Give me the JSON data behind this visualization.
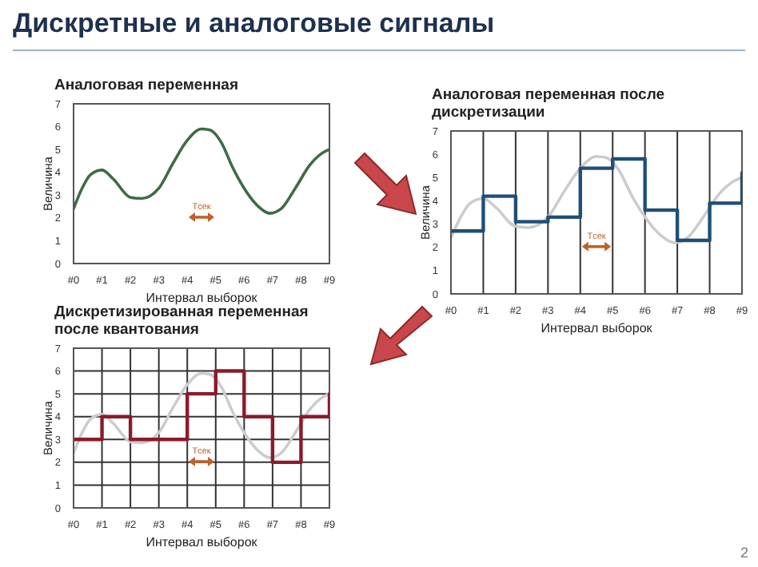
{
  "chart_data": [
    {
      "type": "line",
      "title": "Аналоговая переменная",
      "xlabel": "Интервал выборок",
      "ylabel": "Величина",
      "xlim": [
        0,
        9
      ],
      "ylim": [
        0,
        7
      ],
      "yticks": [
        0,
        1,
        2,
        3,
        4,
        5,
        6,
        7
      ],
      "xticks": [
        {
          "value": 0,
          "label": "#0"
        },
        {
          "value": 1,
          "label": "#1"
        },
        {
          "value": 2,
          "label": "#2"
        },
        {
          "value": 3,
          "label": "#3"
        },
        {
          "value": 4,
          "label": "#4"
        },
        {
          "value": 5,
          "label": "#5"
        },
        {
          "value": 6,
          "label": "#6"
        },
        {
          "value": 7,
          "label": "#7"
        },
        {
          "value": 8,
          "label": "#8"
        },
        {
          "value": 9,
          "label": "#9"
        }
      ],
      "grid": false,
      "series": [
        {
          "color": "#3d6b45",
          "x": [
            0,
            0.3,
            0.6,
            1,
            1.4,
            2,
            2.4,
            3,
            3.5,
            4,
            4.5,
            4.8,
            5.2,
            5.6,
            6,
            6.5,
            6.9,
            7.3,
            7.8,
            8.3,
            8.7,
            9
          ],
          "values": [
            2.4,
            3.3,
            3.9,
            4.1,
            3.7,
            2.9,
            2.85,
            3.3,
            4.4,
            5.4,
            5.9,
            5.85,
            5.3,
            4.2,
            3.3,
            2.5,
            2.2,
            2.4,
            3.3,
            4.3,
            4.8,
            5.0
          ]
        }
      ],
      "annotations": [
        "Дискретные и аналоговые сигналы",
        "Tсек"
      ]
    },
    {
      "type": "line",
      "title": "Аналоговая переменная после дискретизации",
      "xlabel": "Интервал выборок",
      "ylabel": "Величина",
      "xlim": [
        0,
        9
      ],
      "ylim": [
        0,
        7
      ],
      "yticks": [
        0,
        1,
        2,
        3,
        4,
        5,
        6,
        7
      ],
      "xticks": [
        {
          "value": 0,
          "label": "#0"
        },
        {
          "value": 1,
          "label": "#1"
        },
        {
          "value": 2,
          "label": "#2"
        },
        {
          "value": 3,
          "label": "#3"
        },
        {
          "value": 4,
          "label": "#4"
        },
        {
          "value": 5,
          "label": "#5"
        },
        {
          "value": 6,
          "label": "#6"
        },
        {
          "value": 7,
          "label": "#7"
        },
        {
          "value": 8,
          "label": "#8"
        },
        {
          "value": 9,
          "label": "#9"
        }
      ],
      "grid": "x",
      "series": [
        {
          "color": "#cccccc",
          "x": [
            0,
            0.3,
            0.6,
            1,
            1.4,
            2,
            2.4,
            3,
            3.5,
            4,
            4.5,
            4.8,
            5.2,
            5.6,
            6,
            6.5,
            6.9,
            7.3,
            7.8,
            8.3,
            8.7,
            9
          ],
          "values": [
            2.4,
            3.3,
            3.9,
            4.1,
            3.7,
            2.9,
            2.85,
            3.3,
            4.4,
            5.4,
            5.9,
            5.85,
            5.3,
            4.2,
            3.3,
            2.5,
            2.2,
            2.4,
            3.3,
            4.3,
            4.8,
            5.0
          ]
        },
        {
          "type": "step",
          "color": "#1f4e79",
          "x": [
            0,
            1,
            2,
            3,
            4,
            5,
            6,
            7,
            8,
            9
          ],
          "values": [
            2.7,
            4.2,
            3.1,
            3.3,
            5.4,
            5.8,
            3.6,
            2.3,
            3.9,
            5.2
          ]
        }
      ],
      "annotations": [
        "Tсек"
      ]
    },
    {
      "type": "line",
      "title": "Дискретизированная переменная после квантования",
      "xlabel": "Интервал выборок",
      "ylabel": "Величина",
      "xlim": [
        0,
        9
      ],
      "ylim": [
        0,
        7
      ],
      "yticks": [
        0,
        1,
        2,
        3,
        4,
        5,
        6,
        7
      ],
      "xticks": [
        {
          "value": 0,
          "label": "#0"
        },
        {
          "value": 1,
          "label": "#1"
        },
        {
          "value": 2,
          "label": "#2"
        },
        {
          "value": 3,
          "label": "#3"
        },
        {
          "value": 4,
          "label": "#4"
        },
        {
          "value": 5,
          "label": "#5"
        },
        {
          "value": 6,
          "label": "#6"
        },
        {
          "value": 7,
          "label": "#7"
        },
        {
          "value": 8,
          "label": "#8"
        },
        {
          "value": 9,
          "label": "#9"
        }
      ],
      "grid": true,
      "series": [
        {
          "color": "#cccccc",
          "x": [
            0,
            0.3,
            0.6,
            1,
            1.4,
            2,
            2.4,
            3,
            3.5,
            4,
            4.5,
            4.8,
            5.2,
            5.6,
            6,
            6.5,
            6.9,
            7.3,
            7.8,
            8.3,
            8.7,
            9
          ],
          "values": [
            2.4,
            3.3,
            3.9,
            4.1,
            3.7,
            2.9,
            2.85,
            3.3,
            4.4,
            5.4,
            5.9,
            5.85,
            5.3,
            4.2,
            3.3,
            2.5,
            2.2,
            2.4,
            3.3,
            4.3,
            4.8,
            5.0
          ]
        },
        {
          "type": "step",
          "color": "#8b1a2b",
          "x": [
            0,
            1,
            2,
            3,
            4,
            5,
            6,
            7,
            8,
            9
          ],
          "values": [
            3,
            4,
            3,
            3,
            5,
            6,
            4,
            2,
            4,
            5
          ]
        }
      ],
      "annotations": [
        "Tсек",
        "2"
      ]
    }
  ]
}
